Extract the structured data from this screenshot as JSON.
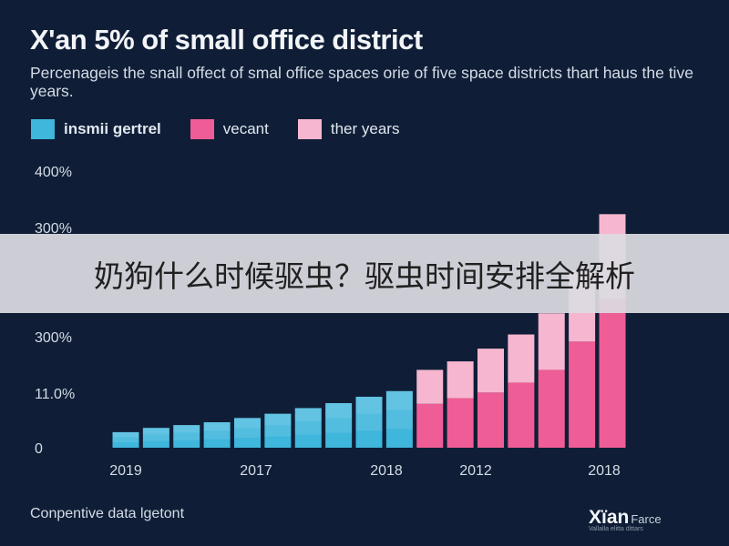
{
  "header": {
    "title": "X'an 5% of small office district",
    "subtitle": "Percenageis the snall offect of smal office spaces orie of five space districts thart haus the tive years."
  },
  "legend": [
    {
      "label": "insmii gertrel",
      "color": "#3fb6dc"
    },
    {
      "label": "vecant",
      "color": "#ef5d96"
    },
    {
      "label": "ther years",
      "color": "#f6b6cf"
    }
  ],
  "overlay": {
    "text": "奶狗什么时候驱虫？驱虫时间安排全解析"
  },
  "footer": {
    "note": "Conpentive data lgetont"
  },
  "brand": {
    "main": "Xïan",
    "sub": "Farce",
    "tag": "Vallalla elitta dittars"
  },
  "chart_data": {
    "type": "bar",
    "stacked": true,
    "y_tick_labels": [
      "0",
      "11.0%",
      "300%",
      "300%",
      "400%"
    ],
    "x_tick_labels": [
      "2019",
      "2017",
      "2018",
      "2012",
      "2018"
    ],
    "categories_count": 17,
    "series": [
      {
        "name": "insmii gertrel",
        "color": "#3fb6dc",
        "values": [
          22,
          28,
          32,
          36,
          42,
          48,
          56,
          63,
          72,
          80,
          0,
          0,
          0,
          0,
          0,
          0,
          0
        ]
      },
      {
        "name": "vecant",
        "color": "#ef5d96",
        "values": [
          0,
          0,
          0,
          0,
          0,
          0,
          0,
          0,
          0,
          0,
          62,
          70,
          78,
          92,
          110,
          150,
          210
        ]
      },
      {
        "name": "ther years",
        "color": "#f6b6cf",
        "values": [
          0,
          0,
          0,
          0,
          0,
          0,
          0,
          0,
          0,
          0,
          48,
          52,
          62,
          68,
          80,
          100,
          120
        ]
      }
    ],
    "ylim": [
      0,
      360
    ],
    "grid": false,
    "legend_position": "top-left"
  }
}
